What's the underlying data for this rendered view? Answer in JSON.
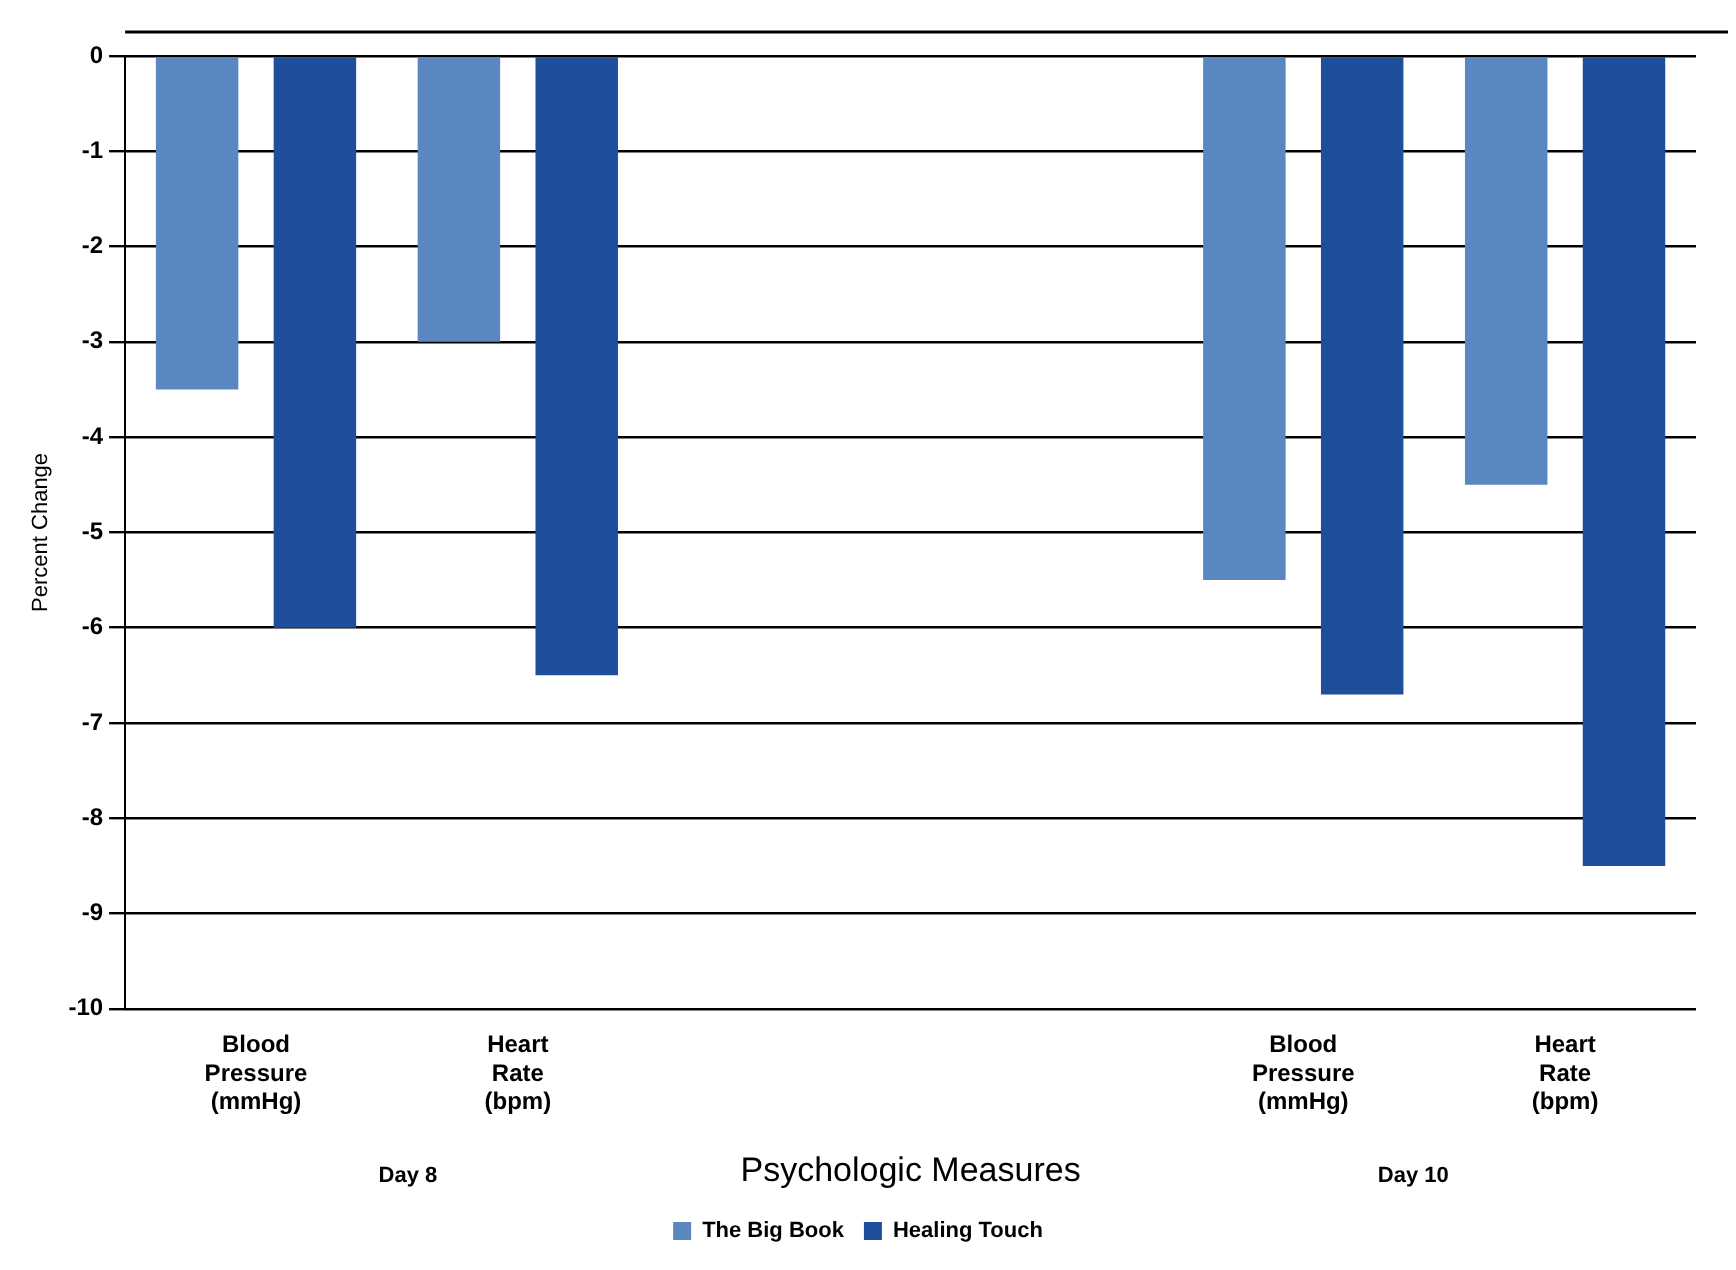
{
  "chart_data": {
    "type": "bar",
    "xlabel": "Psychologic Measures",
    "ylabel": "Percent Change",
    "categories": [
      "Blood Pressure (mmHg)",
      "Heart Rate (bpm)",
      null,
      null,
      "Blood Pressure (mmHg)",
      "Heart Rate (bpm)"
    ],
    "series": [
      {
        "name": "The Big Book",
        "color": "#5b87c0",
        "values": [
          -3.5,
          -3.0,
          null,
          null,
          -5.5,
          -4.5
        ]
      },
      {
        "name": "Healing Touch",
        "color": "#1f4f9a",
        "values": [
          -6.0,
          -6.5,
          null,
          null,
          -6.7,
          -8.5
        ]
      }
    ],
    "ylim": [
      -10,
      0
    ],
    "yticks": [
      0,
      -1,
      -2,
      -3,
      -4,
      -5,
      -6,
      -7,
      -8,
      -9,
      -10
    ],
    "annotations": [
      "Day 8",
      "Day 10"
    ],
    "grid": "y",
    "legend": "bottom"
  }
}
